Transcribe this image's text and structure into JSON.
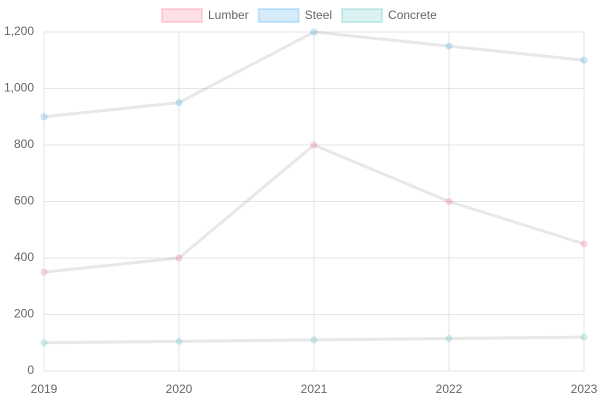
{
  "chart_data": {
    "type": "line",
    "categories": [
      "2019",
      "2020",
      "2021",
      "2022",
      "2023"
    ],
    "series": [
      {
        "name": "Lumber",
        "color": "#ff6384",
        "values": [
          350,
          400,
          800,
          600,
          450
        ]
      },
      {
        "name": "Steel",
        "color": "#36a2eb",
        "values": [
          900,
          950,
          1200,
          1150,
          1100
        ]
      },
      {
        "name": "Concrete",
        "color": "#4bc0c0",
        "values": [
          100,
          105,
          110,
          115,
          120
        ]
      }
    ],
    "ylim": [
      0,
      1200
    ],
    "yticks": [
      0,
      200,
      400,
      600,
      800,
      {
        "value": 1000,
        "label": "1,000"
      },
      {
        "value": 1200,
        "label": "1,200"
      }
    ],
    "grid": true,
    "legend": "top"
  }
}
